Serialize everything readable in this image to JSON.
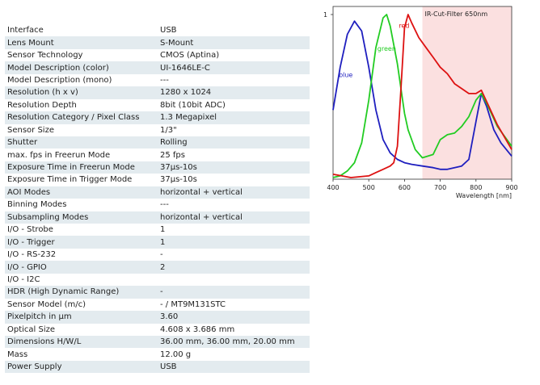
{
  "specs": [
    {
      "label": "Interface",
      "value": "USB"
    },
    {
      "label": "Lens Mount",
      "value": "S-Mount"
    },
    {
      "label": "Sensor Technology",
      "value": "CMOS (Aptina)"
    },
    {
      "label": "Model Description (color)",
      "value": "UI-1646LE-C"
    },
    {
      "label": "Model Description (mono)",
      "value": "---"
    },
    {
      "label": "Resolution (h x v)",
      "value": "1280 x 1024"
    },
    {
      "label": "Resolution Depth",
      "value": "8bit (10bit ADC)"
    },
    {
      "label": "Resolution Category / Pixel Class",
      "value": "1.3 Megapixel"
    },
    {
      "label": "Sensor Size",
      "value": "1/3\""
    },
    {
      "label": "Shutter",
      "value": "Rolling"
    },
    {
      "label": "max. fps in Freerun Mode",
      "value": "25 fps"
    },
    {
      "label": "Exposure Time in Freerun Mode",
      "value": "37µs-10s"
    },
    {
      "label": "Exposure Time in Trigger Mode",
      "value": "37µs-10s"
    },
    {
      "label": "AOI Modes",
      "value": "horizontal + vertical"
    },
    {
      "label": "Binning Modes",
      "value": "---"
    },
    {
      "label": "Subsampling Modes",
      "value": "horizontal + vertical"
    },
    {
      "label": "I/O - Strobe",
      "value": "1"
    },
    {
      "label": "I/O - Trigger",
      "value": "1"
    },
    {
      "label": "I/O - RS-232",
      "value": "-"
    },
    {
      "label": "I/O - GPIO",
      "value": "2"
    },
    {
      "label": "I/O - I2C",
      "value": ""
    },
    {
      "label": "HDR (High Dynamic Range)",
      "value": "-"
    },
    {
      "label": "Sensor Model (m/c)",
      "value": "- / MT9M131STC"
    },
    {
      "label": "Pixelpitch in µm",
      "value": "3.60"
    },
    {
      "label": "Optical Size",
      "value": "4.608 x 3.686 mm"
    },
    {
      "label": "Dimensions H/W/L",
      "value": "36.00 mm, 36.00 mm, 20.00 mm"
    },
    {
      "label": "Mass",
      "value": "12.00 g"
    },
    {
      "label": "Power Supply",
      "value": "USB"
    }
  ],
  "chart_data": {
    "type": "line",
    "xlabel": "Wavelength [nm]",
    "ylabel": "",
    "xlim": [
      400,
      900
    ],
    "ylim": [
      0,
      1
    ],
    "x_ticks": [
      400,
      500,
      600,
      700,
      800,
      900
    ],
    "y_ticks": [
      "1"
    ],
    "annotation": {
      "text": "IR-Cut-Filter 650nm",
      "from": 650,
      "to": 900,
      "color": "#fbe0e0"
    },
    "series": [
      {
        "name": "blue",
        "color": "#1f1fbf",
        "x": [
          400,
          420,
          440,
          460,
          480,
          500,
          520,
          540,
          560,
          580,
          600,
          620,
          650,
          680,
          700,
          720,
          740,
          760,
          780,
          800,
          815,
          830,
          850,
          870,
          900
        ],
        "y": [
          0.42,
          0.68,
          0.88,
          0.96,
          0.9,
          0.68,
          0.42,
          0.24,
          0.16,
          0.12,
          0.1,
          0.09,
          0.08,
          0.07,
          0.06,
          0.06,
          0.07,
          0.08,
          0.12,
          0.35,
          0.52,
          0.44,
          0.3,
          0.22,
          0.14
        ]
      },
      {
        "name": "green",
        "color": "#22cc22",
        "x": [
          400,
          420,
          440,
          460,
          480,
          500,
          520,
          540,
          550,
          560,
          580,
          600,
          610,
          630,
          650,
          680,
          700,
          720,
          740,
          760,
          780,
          800,
          815,
          830,
          860,
          900
        ],
        "y": [
          0.01,
          0.02,
          0.05,
          0.1,
          0.22,
          0.48,
          0.8,
          0.98,
          1.0,
          0.93,
          0.7,
          0.4,
          0.3,
          0.18,
          0.13,
          0.15,
          0.24,
          0.27,
          0.28,
          0.32,
          0.38,
          0.48,
          0.52,
          0.46,
          0.32,
          0.2
        ]
      },
      {
        "name": "red",
        "color": "#dd1111",
        "x": [
          400,
          450,
          500,
          520,
          540,
          560,
          570,
          580,
          590,
          600,
          610,
          620,
          640,
          660,
          680,
          700,
          720,
          740,
          760,
          780,
          800,
          815,
          830,
          860,
          900
        ],
        "y": [
          0.03,
          0.01,
          0.02,
          0.04,
          0.06,
          0.08,
          0.1,
          0.2,
          0.55,
          0.92,
          1.0,
          0.95,
          0.86,
          0.8,
          0.74,
          0.68,
          0.64,
          0.58,
          0.55,
          0.52,
          0.52,
          0.54,
          0.47,
          0.33,
          0.18
        ]
      }
    ]
  }
}
